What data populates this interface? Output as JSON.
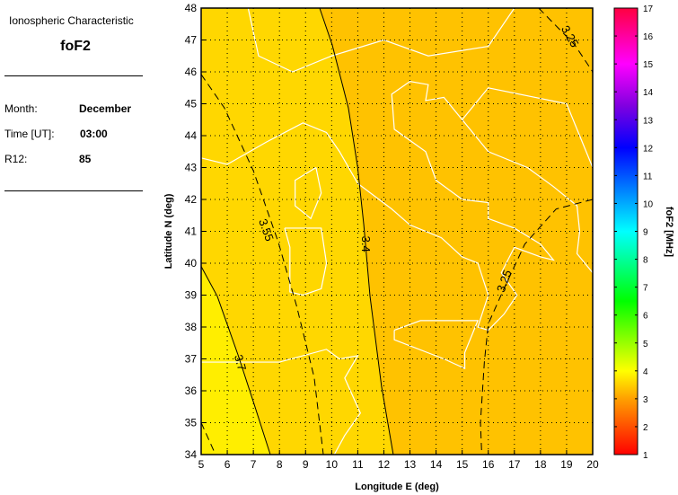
{
  "info": {
    "heading": "Ionospheric Characteristic",
    "characteristic": "foF2",
    "rows": [
      {
        "label": "Month:",
        "value": "December"
      },
      {
        "label": "Time [UT]:",
        "value": "03:00"
      },
      {
        "label": "R12:",
        "value": "85"
      }
    ]
  },
  "chart_data": {
    "type": "contour-map",
    "xlabel": "Longitude E (deg)",
    "ylabel": "Latitude N (deg)",
    "xlim": [
      5,
      20
    ],
    "ylim": [
      34,
      48
    ],
    "xticks": [
      "5",
      "6",
      "7",
      "8",
      "9",
      "10",
      "11",
      "12",
      "13",
      "14",
      "15",
      "16",
      "17",
      "18",
      "19",
      "20"
    ],
    "yticks": [
      "34",
      "35",
      "36",
      "37",
      "38",
      "39",
      "40",
      "41",
      "42",
      "43",
      "44",
      "45",
      "46",
      "47",
      "48"
    ],
    "grid": true,
    "contours": [
      {
        "level": "3.7",
        "style": "solid",
        "points": [
          [
            5,
            39.9
          ],
          [
            5.62,
            38.96
          ],
          [
            6.41,
            37.13
          ],
          [
            7.03,
            35.58
          ],
          [
            7.65,
            34
          ]
        ],
        "label_at": [
          6.35,
          36.85
        ]
      },
      {
        "level": "3.4",
        "style": "solid",
        "points": [
          [
            9.54,
            48
          ],
          [
            10.02,
            46.85
          ],
          [
            10.64,
            44.87
          ],
          [
            10.99,
            43.04
          ],
          [
            11.23,
            41.21
          ],
          [
            11.47,
            38.96
          ],
          [
            11.91,
            36.14
          ],
          [
            12.36,
            34
          ]
        ],
        "label_at": [
          11.15,
          40.6
        ]
      },
      {
        "level": "3.55",
        "style": "dashed",
        "points": [
          [
            5,
            45.92
          ],
          [
            5.89,
            44.87
          ],
          [
            7.0,
            42.9
          ],
          [
            7.96,
            40.65
          ],
          [
            8.65,
            38.68
          ],
          [
            9.33,
            36.42
          ],
          [
            9.68,
            34
          ]
        ],
        "label_at": [
          7.35,
          41.0
        ]
      },
      {
        "level": "",
        "style": "dashed",
        "points": [
          [
            5,
            35.0
          ],
          [
            5.55,
            34
          ]
        ]
      },
      {
        "level": "3.25",
        "style": "dashed",
        "points": [
          [
            17.93,
            48
          ],
          [
            19.31,
            46.85
          ],
          [
            20,
            46.0
          ]
        ],
        "label_at": [
          19.0,
          47.05
        ]
      },
      {
        "level": "3.25",
        "style": "dashed",
        "points": [
          [
            20,
            42.0
          ],
          [
            18.6,
            41.7
          ],
          [
            17.4,
            40.6
          ],
          [
            16.6,
            39.2
          ],
          [
            16.0,
            38.1
          ],
          [
            15.85,
            36.9
          ],
          [
            15.7,
            35.0
          ],
          [
            15.75,
            34
          ]
        ],
        "label_at": [
          16.75,
          39.4
        ]
      }
    ],
    "colorbar": {
      "label": "foF2 [MHz]",
      "range": [
        1,
        17
      ],
      "ticks": [
        "1",
        "2",
        "3",
        "4",
        "5",
        "6",
        "7",
        "8",
        "9",
        "10",
        "11",
        "12",
        "13",
        "14",
        "15",
        "16",
        "17"
      ],
      "stops": [
        [
          1,
          "#ff0000"
        ],
        [
          3,
          "#ffa000"
        ],
        [
          4,
          "#ffff00"
        ],
        [
          6.5,
          "#00ff00"
        ],
        [
          9,
          "#00ffff"
        ],
        [
          12,
          "#0000ff"
        ],
        [
          13.5,
          "#8000e0"
        ],
        [
          15,
          "#ff00ff"
        ],
        [
          17,
          "#ff0040"
        ]
      ]
    },
    "fill_colors": {
      "above_3_7": "#ffee00",
      "3_4_to_3_7": "#ffd700",
      "below_3_4": "#ffc200"
    },
    "coastline_color": "#ffffff"
  }
}
